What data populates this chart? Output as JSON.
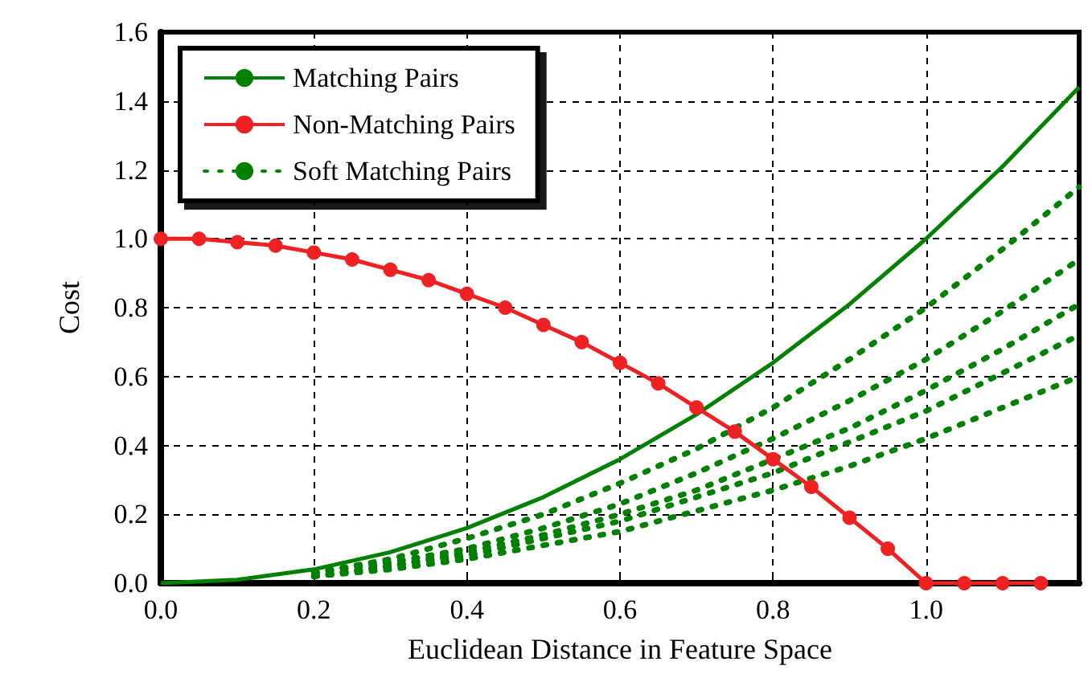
{
  "chart_data": {
    "type": "line",
    "xlabel": "Euclidean Distance in Feature Space",
    "ylabel": "Cost",
    "xlim": [
      0,
      1.2
    ],
    "xticks": [
      {
        "value": 0,
        "label": "0.0"
      },
      {
        "value": 0.2,
        "label": "0.2"
      },
      {
        "value": 0.4,
        "label": "0.4"
      },
      {
        "value": 0.6,
        "label": "0.6"
      },
      {
        "value": 0.8,
        "label": "0.8"
      },
      {
        "value": 1,
        "label": "1.0"
      }
    ],
    "ylim": [
      0,
      1.6
    ],
    "yticks": [
      {
        "value": 0,
        "label": "0.0"
      },
      {
        "value": 0.2,
        "label": "0.2"
      },
      {
        "value": 0.4,
        "label": "0.4"
      },
      {
        "value": 0.6,
        "label": "0.6"
      },
      {
        "value": 0.8,
        "label": "0.8"
      },
      {
        "value": 1,
        "label": "1.0"
      },
      {
        "value": 1.2,
        "label": "1.2"
      },
      {
        "value": 1.4,
        "label": "1.4"
      },
      {
        "value": 1.6,
        "label": "1.6"
      }
    ],
    "grid": true,
    "legend": "top left",
    "series": [
      {
        "name": "Matching Pairs",
        "color": "#008000",
        "line_style": "solid",
        "marker": "none",
        "x": [
          0,
          0.1,
          0.2,
          0.3,
          0.4,
          0.5,
          0.6,
          0.7,
          0.8,
          0.9,
          1,
          1.1,
          1.2
        ],
        "values": [
          0,
          0.01,
          0.04,
          0.09,
          0.16,
          0.25,
          0.36,
          0.49,
          0.64,
          0.81,
          1,
          1.21,
          1.44
        ]
      },
      {
        "name": "Non-Matching Pairs",
        "color": "#ee2222",
        "line_style": "solid",
        "marker": "circle",
        "x": [
          0,
          0.05,
          0.1,
          0.15,
          0.2,
          0.25,
          0.3,
          0.35,
          0.4,
          0.45,
          0.5,
          0.55,
          0.6,
          0.65,
          0.7,
          0.75,
          0.8,
          0.85,
          0.9,
          0.95,
          1,
          1.05,
          1.1,
          1.15
        ],
        "values": [
          1,
          1,
          0.99,
          0.98,
          0.96,
          0.94,
          0.91,
          0.88,
          0.84,
          0.8,
          0.75,
          0.7,
          0.64,
          0.58,
          0.51,
          0.44,
          0.36,
          0.28,
          0.19,
          0.1,
          0,
          0,
          0,
          0
        ]
      },
      {
        "name": "Soft Matching Pairs",
        "color": "#008000",
        "line_style": "dotted",
        "marker": "none",
        "x": [
          0.2,
          0.3,
          0.4,
          0.5,
          0.6,
          0.7,
          0.8,
          0.9,
          1,
          1.1,
          1.2
        ],
        "values": [
          0.03,
          0.07,
          0.13,
          0.2,
          0.29,
          0.39,
          0.51,
          0.65,
          0.8,
          0.97,
          1.15
        ]
      },
      {
        "color": "#008000",
        "line_style": "dotted",
        "marker": "none",
        "x": [
          0.2,
          0.3,
          0.4,
          0.5,
          0.6,
          0.7,
          0.8,
          0.9,
          1,
          1.1,
          1.2
        ],
        "values": [
          0.03,
          0.06,
          0.1,
          0.16,
          0.23,
          0.32,
          0.42,
          0.53,
          0.65,
          0.79,
          0.94
        ]
      },
      {
        "color": "#008000",
        "line_style": "dotted",
        "marker": "none",
        "x": [
          0.2,
          0.3,
          0.4,
          0.5,
          0.6,
          0.7,
          0.8,
          0.9,
          1,
          1.1,
          1.2
        ],
        "values": [
          0.02,
          0.05,
          0.09,
          0.14,
          0.2,
          0.27,
          0.36,
          0.45,
          0.56,
          0.68,
          0.81
        ]
      },
      {
        "color": "#008000",
        "line_style": "dotted",
        "marker": "none",
        "x": [
          0.2,
          0.3,
          0.4,
          0.5,
          0.6,
          0.7,
          0.8,
          0.9,
          1,
          1.1,
          1.2
        ],
        "values": [
          0.02,
          0.05,
          0.08,
          0.13,
          0.18,
          0.25,
          0.32,
          0.41,
          0.5,
          0.61,
          0.72
        ]
      },
      {
        "color": "#008000",
        "line_style": "dotted",
        "marker": "none",
        "x": [
          0.2,
          0.3,
          0.4,
          0.5,
          0.6,
          0.7,
          0.8,
          0.9,
          1,
          1.1,
          1.2
        ],
        "values": [
          0.02,
          0.04,
          0.07,
          0.11,
          0.15,
          0.21,
          0.27,
          0.34,
          0.42,
          0.51,
          0.6
        ]
      }
    ]
  }
}
